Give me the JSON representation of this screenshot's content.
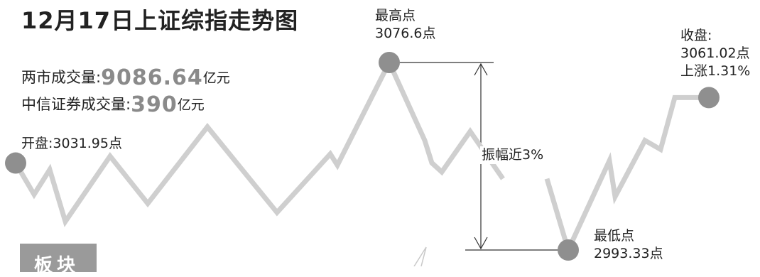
{
  "title": "12月17日上证综指走势图",
  "volume": {
    "total_label": "两市成交量:",
    "total_value": "9086.64",
    "total_unit": "亿元",
    "citic_label": "中信证券成交量:",
    "citic_value": "390",
    "citic_unit": "亿元"
  },
  "annotations": {
    "open": "开盘:3031.95点",
    "high_title": "最高点",
    "high_value": "3076.6点",
    "close_title": "收盘:",
    "close_value": "3061.02点",
    "close_change": "上涨1.31%",
    "range": "振幅近3%",
    "low_title": "最低点",
    "low_value": "2993.33点"
  },
  "sector_tag": "板块",
  "colors": {
    "line": "#cfcfcf",
    "marker": "#8f8f8f",
    "text": "#222222",
    "highlight_number": "#8a8a8a"
  },
  "chart_data": {
    "type": "line",
    "title": "12月17日上证综指走势图",
    "open": 3031.95,
    "high": 3076.6,
    "low": 2993.33,
    "close": 3061.02,
    "change_pct": 1.31,
    "series": [
      {
        "values": [
          3031.95,
          3018,
          3029,
          3006,
          3035,
          3014,
          3048,
          3010,
          3036,
          3031,
          3076.6,
          3042,
          3032,
          3028,
          3046,
          3025,
          3025,
          2993.33,
          3033,
          3017,
          3042,
          3038,
          3061.02,
          3061.02
        ]
      }
    ]
  }
}
